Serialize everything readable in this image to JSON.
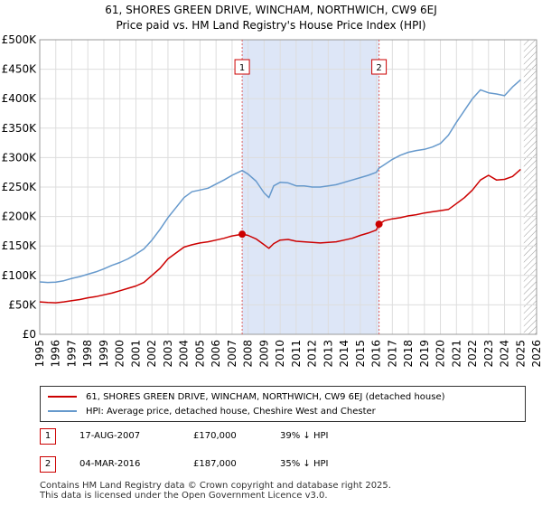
{
  "title": "61, SHORES GREEN DRIVE, WINCHAM, NORTHWICH, CW9 6EJ",
  "subtitle": "Price paid vs. HM Land Registry's House Price Index (HPI)",
  "colors": {
    "property": "#cc0000",
    "hpi": "#6699cc",
    "shade": "#dde6f7",
    "grid": "#dddddd",
    "hatch": "#999999",
    "marker_line": "#e06060"
  },
  "chart_data": {
    "type": "line",
    "title": "61, SHORES GREEN DRIVE, WINCHAM, NORTHWICH, CW9 6EJ",
    "subtitle": "Price paid vs. HM Land Registry's House Price Index (HPI)",
    "xlabel": "",
    "ylabel": "",
    "xlim": [
      1995,
      2026
    ],
    "ylim": [
      0,
      500000
    ],
    "grid": true,
    "legend_position": "below",
    "x_ticks": [
      "1995",
      "1996",
      "1997",
      "1998",
      "1999",
      "2000",
      "2001",
      "2002",
      "2003",
      "2004",
      "2005",
      "2006",
      "2007",
      "2008",
      "2009",
      "2010",
      "2011",
      "2012",
      "2013",
      "2014",
      "2015",
      "2016",
      "2017",
      "2018",
      "2019",
      "2020",
      "2021",
      "2022",
      "2023",
      "2024",
      "2025",
      "2026"
    ],
    "y_ticks": [
      "£0",
      "£50K",
      "£100K",
      "£150K",
      "£200K",
      "£250K",
      "£300K",
      "£350K",
      "£400K",
      "£450K",
      "£500K"
    ],
    "shaded_period": [
      2007.63,
      2016.17
    ],
    "future_hatch_from": 2025.2,
    "series": [
      {
        "name": "61, SHORES GREEN DRIVE, WINCHAM, NORTHWICH, CW9 6EJ (detached house)",
        "x": [
          1995.0,
          1995.5,
          1996.0,
          1996.5,
          1997.0,
          1997.5,
          1998.0,
          1998.5,
          1999.0,
          1999.5,
          2000.0,
          2000.5,
          2001.0,
          2001.5,
          2002.0,
          2002.5,
          2003.0,
          2003.5,
          2004.0,
          2004.5,
          2005.0,
          2005.5,
          2006.0,
          2006.5,
          2007.0,
          2007.63,
          2008.0,
          2008.5,
          2009.0,
          2009.3,
          2009.6,
          2010.0,
          2010.5,
          2011.0,
          2011.5,
          2012.0,
          2012.5,
          2013.0,
          2013.5,
          2014.0,
          2014.5,
          2015.0,
          2015.5,
          2016.0,
          2016.17,
          2016.5,
          2017.0,
          2017.5,
          2018.0,
          2018.5,
          2019.0,
          2019.5,
          2020.0,
          2020.5,
          2021.0,
          2021.5,
          2022.0,
          2022.5,
          2023.0,
          2023.5,
          2024.0,
          2024.5,
          2025.0
        ],
        "values": [
          55000,
          54000,
          53500,
          55000,
          57000,
          59000,
          62000,
          64000,
          67000,
          70000,
          74000,
          78000,
          82000,
          88000,
          100000,
          112000,
          128000,
          138000,
          148000,
          152000,
          155000,
          157000,
          160000,
          163000,
          167000,
          170000,
          168000,
          162000,
          152000,
          146000,
          154000,
          160000,
          161000,
          158000,
          157000,
          156000,
          155000,
          156000,
          157000,
          160000,
          163000,
          168000,
          172000,
          177000,
          187000,
          193000,
          196000,
          198000,
          201000,
          203000,
          206000,
          208000,
          210000,
          212000,
          222000,
          232000,
          245000,
          262000,
          270000,
          262000,
          263000,
          268000,
          280000
        ]
      },
      {
        "name": "HPI: Average price, detached house, Cheshire West and Chester",
        "x": [
          1995.0,
          1995.5,
          1996.0,
          1996.5,
          1997.0,
          1997.5,
          1998.0,
          1998.5,
          1999.0,
          1999.5,
          2000.0,
          2000.5,
          2001.0,
          2001.5,
          2002.0,
          2002.5,
          2003.0,
          2003.5,
          2004.0,
          2004.5,
          2005.0,
          2005.5,
          2006.0,
          2006.5,
          2007.0,
          2007.63,
          2008.0,
          2008.5,
          2009.0,
          2009.3,
          2009.6,
          2010.0,
          2010.5,
          2011.0,
          2011.5,
          2012.0,
          2012.5,
          2013.0,
          2013.5,
          2014.0,
          2014.5,
          2015.0,
          2015.5,
          2016.0,
          2016.17,
          2016.5,
          2017.0,
          2017.5,
          2018.0,
          2018.5,
          2019.0,
          2019.5,
          2020.0,
          2020.5,
          2021.0,
          2021.5,
          2022.0,
          2022.5,
          2023.0,
          2023.5,
          2024.0,
          2024.5,
          2025.0
        ],
        "values": [
          89000,
          88000,
          88500,
          91000,
          95000,
          98000,
          102000,
          106000,
          111000,
          117000,
          122000,
          128000,
          136000,
          145000,
          160000,
          178000,
          198000,
          215000,
          232000,
          242000,
          245000,
          248000,
          255000,
          262000,
          270000,
          278000,
          272000,
          260000,
          240000,
          232000,
          252000,
          258000,
          257000,
          252000,
          252000,
          250000,
          250000,
          252000,
          254000,
          258000,
          262000,
          266000,
          270000,
          275000,
          282000,
          288000,
          297000,
          304000,
          309000,
          312000,
          314000,
          318000,
          324000,
          338000,
          360000,
          380000,
          400000,
          415000,
          410000,
          408000,
          405000,
          420000,
          432000
        ]
      }
    ],
    "sales": [
      {
        "label": "1",
        "date": "17-AUG-2007",
        "x": 2007.63,
        "price": 170000,
        "price_text": "£170,000",
        "hpi_text": "39% ↓ HPI"
      },
      {
        "label": "2",
        "date": "04-MAR-2016",
        "x": 2016.17,
        "price": 187000,
        "price_text": "£187,000",
        "hpi_text": "35% ↓ HPI"
      }
    ]
  },
  "legend": {
    "property_label": "61, SHORES GREEN DRIVE, WINCHAM, NORTHWICH, CW9 6EJ (detached house)",
    "hpi_label": "HPI: Average price, detached house, Cheshire West and Chester"
  },
  "footer": {
    "line1": "Contains HM Land Registry data © Crown copyright and database right 2025.",
    "line2": "This data is licensed under the Open Government Licence v3.0."
  }
}
